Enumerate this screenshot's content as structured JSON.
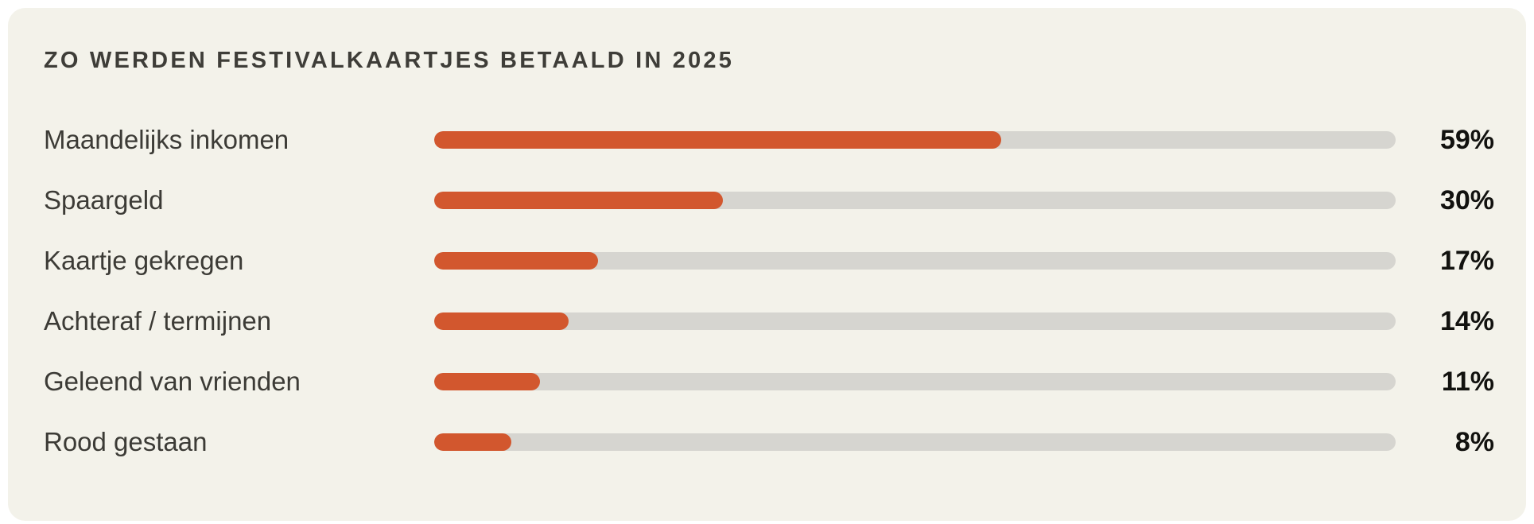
{
  "chart_data": {
    "type": "bar",
    "orientation": "horizontal",
    "title": "ZO WERDEN FESTIVALKAARTJES BETAALD IN 2025",
    "categories": [
      "Maandelijks inkomen",
      "Spaargeld",
      "Kaartje gekregen",
      "Achteraf / termijnen",
      "Geleend van vrienden",
      "Rood gestaan"
    ],
    "values": [
      59,
      30,
      17,
      14,
      11,
      8
    ],
    "value_labels": [
      "59%",
      "30%",
      "17%",
      "14%",
      "11%",
      "8%"
    ],
    "xlim": [
      0,
      100
    ],
    "grid": false,
    "legend": false,
    "colors": {
      "bar_fill": "#d2572e",
      "bar_track": "#d6d5d0",
      "card_background": "#f3f2ea",
      "page_background": "#ffffff",
      "title_text": "#3e3d38",
      "label_text": "#3c3b36",
      "value_text": "#12120f"
    }
  }
}
